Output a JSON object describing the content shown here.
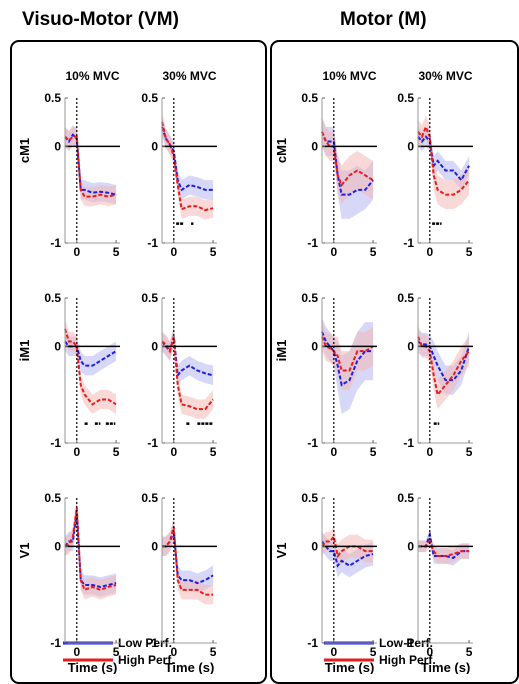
{
  "figure": {
    "panels": [
      {
        "id": "VM",
        "title": "Visuo-Motor (VM)"
      },
      {
        "id": "M",
        "title": "Motor (M)"
      }
    ],
    "conditions": [
      "10% MVC",
      "30% MVC"
    ],
    "regions": [
      "cM1",
      "iM1",
      "V1"
    ],
    "x_tick_labels": [
      "0",
      "5"
    ],
    "y_tick_labels": [
      "0.5",
      "0",
      "-1"
    ],
    "xlabel": "Time (s)",
    "legend": [
      {
        "label": "Low Perf.",
        "color": "#1f1fe0"
      },
      {
        "label": "High Perf.",
        "color": "#e81c1c"
      }
    ]
  },
  "chart_data": {
    "type": "line",
    "xlim": [
      -1.5,
      5.5
    ],
    "ylim": [
      -1,
      0.5
    ],
    "xticks": [
      0,
      5
    ],
    "yticks": [
      0.5,
      0,
      -1
    ],
    "reference_lines": {
      "horizontal_y": 0,
      "vertical_x": 0
    },
    "series_styles": {
      "Low Perf.": {
        "color": "#1f1fe0",
        "band": "#b7b7f0"
      },
      "High Perf.": {
        "color": "#e81c1c",
        "band": "#f4b8b8"
      }
    },
    "subplots": [
      {
        "panel": "VM",
        "condition": "10% MVC",
        "region": "cM1",
        "x": [
          -1.5,
          -1,
          -0.5,
          0,
          0.5,
          1,
          2,
          3,
          4,
          5
        ],
        "series": [
          {
            "name": "Low Perf.",
            "values": [
              0.1,
              0.05,
              0.12,
              0.08,
              -0.45,
              -0.45,
              -0.48,
              -0.47,
              -0.48,
              -0.5
            ],
            "err": [
              0.1,
              0.1,
              0.1,
              0.1,
              0.1,
              0.1,
              0.1,
              0.1,
              0.1,
              0.1
            ]
          },
          {
            "name": "High Perf.",
            "values": [
              0.1,
              0.06,
              0.1,
              0.1,
              -0.45,
              -0.52,
              -0.52,
              -0.5,
              -0.52,
              -0.5
            ],
            "err": [
              0.1,
              0.1,
              0.1,
              0.1,
              0.1,
              0.1,
              0.1,
              0.1,
              0.1,
              0.1
            ]
          }
        ],
        "sig_bars": []
      },
      {
        "panel": "VM",
        "condition": "30% MVC",
        "region": "cM1",
        "x": [
          -1.5,
          -1,
          -0.5,
          0,
          0.5,
          1,
          2,
          3,
          4,
          5
        ],
        "series": [
          {
            "name": "Low Perf.",
            "values": [
              0.2,
              0.08,
              0.02,
              -0.05,
              -0.35,
              -0.45,
              -0.4,
              -0.42,
              -0.45,
              -0.45
            ],
            "err": [
              0.1,
              0.1,
              0.1,
              0.1,
              0.1,
              0.1,
              0.1,
              0.1,
              0.1,
              0.1
            ]
          },
          {
            "name": "High Perf.",
            "values": [
              0.25,
              0.08,
              0.02,
              -0.1,
              -0.4,
              -0.65,
              -0.62,
              -0.62,
              -0.66,
              -0.64
            ],
            "err": [
              0.1,
              0.1,
              0.1,
              0.1,
              0.1,
              0.1,
              0.1,
              0.1,
              0.1,
              0.1
            ]
          }
        ],
        "sig_bars": [
          [
            0.3,
            1.2
          ],
          [
            2.2,
            2.5
          ]
        ]
      },
      {
        "panel": "VM",
        "condition": "10% MVC",
        "region": "iM1",
        "x": [
          -1.5,
          -1,
          -0.5,
          0,
          0.5,
          1,
          2,
          3,
          4,
          5
        ],
        "series": [
          {
            "name": "Low Perf.",
            "values": [
              0.05,
              0.0,
              0.0,
              0.0,
              -0.15,
              -0.2,
              -0.2,
              -0.15,
              -0.1,
              -0.05
            ],
            "err": [
              0.1,
              0.1,
              0.1,
              0.1,
              0.1,
              0.1,
              0.1,
              0.1,
              0.1,
              0.1
            ]
          },
          {
            "name": "High Perf.",
            "values": [
              0.18,
              0.05,
              0.05,
              0.0,
              -0.4,
              -0.5,
              -0.6,
              -0.55,
              -0.55,
              -0.6
            ],
            "err": [
              0.1,
              0.1,
              0.1,
              0.1,
              0.1,
              0.1,
              0.1,
              0.1,
              0.1,
              0.1
            ]
          }
        ],
        "sig_bars": [
          [
            1.0,
            1.5
          ],
          [
            2.3,
            3.0
          ],
          [
            3.7,
            4.9
          ]
        ]
      },
      {
        "panel": "VM",
        "condition": "30% MVC",
        "region": "iM1",
        "x": [
          -1.5,
          -1,
          -0.5,
          0,
          0.5,
          1,
          2,
          3,
          4,
          5
        ],
        "series": [
          {
            "name": "Low Perf.",
            "values": [
              0.05,
              0.0,
              -0.05,
              0.1,
              -0.3,
              -0.25,
              -0.2,
              -0.25,
              -0.28,
              -0.3
            ],
            "err": [
              0.1,
              0.1,
              0.1,
              0.1,
              0.1,
              0.1,
              0.1,
              0.1,
              0.1,
              0.1
            ]
          },
          {
            "name": "High Perf.",
            "values": [
              0.05,
              0.02,
              -0.05,
              0.1,
              -0.4,
              -0.6,
              -0.62,
              -0.65,
              -0.65,
              -0.55
            ],
            "err": [
              0.1,
              0.1,
              0.1,
              0.1,
              0.1,
              0.1,
              0.1,
              0.1,
              0.1,
              0.1
            ]
          }
        ],
        "sig_bars": [
          [
            1.6,
            2.0
          ],
          [
            3.0,
            5.0
          ]
        ]
      },
      {
        "panel": "VM",
        "condition": "10% MVC",
        "region": "V1",
        "x": [
          -1.5,
          -1,
          -0.5,
          0,
          0.5,
          1,
          2,
          3,
          4,
          5
        ],
        "series": [
          {
            "name": "Low Perf.",
            "values": [
              0.0,
              0.05,
              0.05,
              0.35,
              -0.35,
              -0.4,
              -0.4,
              -0.42,
              -0.4,
              -0.38
            ],
            "err": [
              0.1,
              0.1,
              0.1,
              0.1,
              0.1,
              0.1,
              0.1,
              0.1,
              0.1,
              0.1
            ]
          },
          {
            "name": "High Perf.",
            "values": [
              0.0,
              0.02,
              0.1,
              0.4,
              -0.35,
              -0.45,
              -0.42,
              -0.45,
              -0.42,
              -0.4
            ],
            "err": [
              0.1,
              0.1,
              0.1,
              0.1,
              0.1,
              0.1,
              0.1,
              0.1,
              0.1,
              0.1
            ]
          }
        ],
        "sig_bars": []
      },
      {
        "panel": "VM",
        "condition": "30% MVC",
        "region": "V1",
        "x": [
          -1.5,
          -1,
          -0.5,
          0,
          0.5,
          1,
          2,
          3,
          4,
          5
        ],
        "series": [
          {
            "name": "Low Perf.",
            "values": [
              0.0,
              0.0,
              0.05,
              0.15,
              -0.3,
              -0.35,
              -0.35,
              -0.38,
              -0.35,
              -0.3
            ],
            "err": [
              0.1,
              0.1,
              0.1,
              0.1,
              0.1,
              0.1,
              0.1,
              0.1,
              0.1,
              0.1
            ]
          },
          {
            "name": "High Perf.",
            "values": [
              0.0,
              0.0,
              0.05,
              0.2,
              -0.35,
              -0.45,
              -0.45,
              -0.45,
              -0.5,
              -0.5
            ],
            "err": [
              0.1,
              0.1,
              0.1,
              0.1,
              0.1,
              0.1,
              0.1,
              0.1,
              0.1,
              0.1
            ]
          }
        ],
        "sig_bars": []
      },
      {
        "panel": "M",
        "condition": "10% MVC",
        "region": "cM1",
        "x": [
          -1.5,
          -1,
          -0.5,
          0,
          0.5,
          1,
          2,
          3,
          4,
          5
        ],
        "series": [
          {
            "name": "Low Perf.",
            "values": [
              0.15,
              0.05,
              0.05,
              0.05,
              -0.3,
              -0.5,
              -0.5,
              -0.45,
              -0.45,
              -0.35
            ],
            "err": [
              0.15,
              0.15,
              0.15,
              0.15,
              0.2,
              0.25,
              0.25,
              0.25,
              0.2,
              0.2
            ]
          },
          {
            "name": "High Perf.",
            "values": [
              0.15,
              0.05,
              0.0,
              0.0,
              -0.3,
              -0.4,
              -0.3,
              -0.25,
              -0.3,
              -0.35
            ],
            "err": [
              0.15,
              0.15,
              0.15,
              0.15,
              0.2,
              0.2,
              0.2,
              0.2,
              0.2,
              0.2
            ]
          }
        ],
        "sig_bars": []
      },
      {
        "panel": "M",
        "condition": "30% MVC",
        "region": "cM1",
        "x": [
          -1.5,
          -1,
          -0.5,
          0,
          0.5,
          1,
          2,
          3,
          4,
          5
        ],
        "series": [
          {
            "name": "Low Perf.",
            "values": [
              0.1,
              0.05,
              0.1,
              0.05,
              -0.2,
              -0.15,
              -0.25,
              -0.25,
              -0.35,
              -0.2
            ],
            "err": [
              0.1,
              0.1,
              0.1,
              0.1,
              0.1,
              0.1,
              0.1,
              0.1,
              0.1,
              0.1
            ]
          },
          {
            "name": "High Perf.",
            "values": [
              0.15,
              0.1,
              0.2,
              0.1,
              -0.3,
              -0.45,
              -0.5,
              -0.5,
              -0.45,
              -0.35
            ],
            "err": [
              0.12,
              0.12,
              0.12,
              0.12,
              0.15,
              0.15,
              0.15,
              0.15,
              0.15,
              0.15
            ]
          }
        ],
        "sig_bars": [
          [
            0.3,
            1.5
          ]
        ]
      },
      {
        "panel": "M",
        "condition": "10% MVC",
        "region": "iM1",
        "x": [
          -1.5,
          -1,
          -0.5,
          0,
          0.5,
          1,
          2,
          3,
          4,
          5
        ],
        "series": [
          {
            "name": "Low Perf.",
            "values": [
              0.15,
              0.05,
              0.0,
              -0.05,
              -0.2,
              -0.4,
              -0.35,
              -0.15,
              -0.05,
              -0.05
            ],
            "err": [
              0.15,
              0.15,
              0.15,
              0.15,
              0.25,
              0.3,
              0.3,
              0.3,
              0.3,
              0.3
            ]
          },
          {
            "name": "High Perf.",
            "values": [
              0.1,
              0.0,
              -0.02,
              -0.05,
              -0.1,
              -0.25,
              -0.25,
              -0.05,
              -0.05,
              0.0
            ],
            "err": [
              0.15,
              0.15,
              0.15,
              0.15,
              0.2,
              0.2,
              0.2,
              0.2,
              0.2,
              0.2
            ]
          }
        ],
        "sig_bars": []
      },
      {
        "panel": "M",
        "condition": "30% MVC",
        "region": "iM1",
        "x": [
          -1.5,
          -1,
          -0.5,
          0,
          0.5,
          1,
          2,
          3,
          4,
          5
        ],
        "series": [
          {
            "name": "Low Perf.",
            "values": [
              0.05,
              0.02,
              0.02,
              0.0,
              -0.1,
              -0.2,
              -0.35,
              -0.35,
              -0.25,
              0.0
            ],
            "err": [
              0.12,
              0.12,
              0.12,
              0.12,
              0.15,
              0.15,
              0.15,
              0.15,
              0.15,
              0.15
            ]
          },
          {
            "name": "High Perf.",
            "values": [
              0.1,
              0.0,
              0.0,
              -0.05,
              -0.3,
              -0.5,
              -0.4,
              -0.3,
              -0.15,
              -0.05
            ],
            "err": [
              0.12,
              0.12,
              0.12,
              0.12,
              0.15,
              0.15,
              0.15,
              0.15,
              0.15,
              0.15
            ]
          }
        ],
        "sig_bars": [
          [
            0.5,
            1.2
          ]
        ]
      },
      {
        "panel": "M",
        "condition": "10% MVC",
        "region": "V1",
        "x": [
          -1.5,
          -1,
          -0.5,
          0,
          0.5,
          1,
          2,
          3,
          4,
          5
        ],
        "series": [
          {
            "name": "Low Perf.",
            "values": [
              0.05,
              0.0,
              -0.05,
              -0.05,
              -0.2,
              -0.15,
              -0.2,
              -0.15,
              -0.1,
              -0.08
            ],
            "err": [
              0.1,
              0.1,
              0.1,
              0.1,
              0.12,
              0.12,
              0.12,
              0.12,
              0.12,
              0.12
            ]
          },
          {
            "name": "High Perf.",
            "values": [
              0.0,
              0.05,
              0.05,
              0.1,
              -0.1,
              -0.05,
              0.0,
              0.0,
              -0.05,
              -0.05
            ],
            "err": [
              0.1,
              0.1,
              0.1,
              0.1,
              0.12,
              0.12,
              0.12,
              0.12,
              0.12,
              0.12
            ]
          }
        ],
        "sig_bars": []
      },
      {
        "panel": "M",
        "condition": "30% MVC",
        "region": "V1",
        "x": [
          -1.5,
          -1,
          -0.5,
          0,
          0.5,
          1,
          2,
          3,
          4,
          5
        ],
        "series": [
          {
            "name": "Low Perf.",
            "values": [
              0.0,
              0.0,
              0.0,
              0.12,
              -0.1,
              -0.1,
              -0.1,
              -0.12,
              -0.05,
              -0.05
            ],
            "err": [
              0.06,
              0.06,
              0.06,
              0.06,
              0.08,
              0.08,
              0.08,
              0.08,
              0.08,
              0.08
            ]
          },
          {
            "name": "High Perf.",
            "values": [
              0.0,
              0.0,
              0.0,
              0.05,
              -0.05,
              -0.1,
              -0.1,
              -0.08,
              -0.05,
              -0.05
            ],
            "err": [
              0.06,
              0.06,
              0.06,
              0.06,
              0.08,
              0.08,
              0.08,
              0.08,
              0.08,
              0.08
            ]
          }
        ],
        "sig_bars": []
      }
    ]
  }
}
